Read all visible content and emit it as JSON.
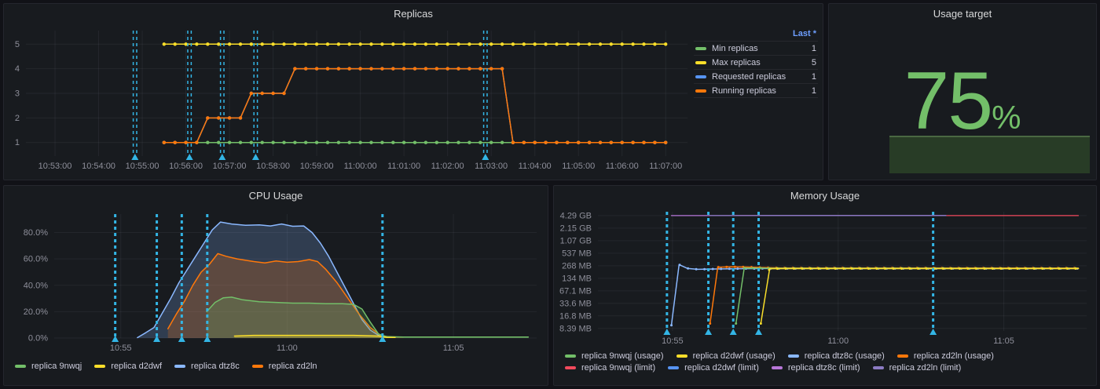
{
  "theme": {
    "background": "#111217",
    "panel_background": "#181b1f",
    "grid_line": "rgba(204,204,220,0.07)",
    "axis_text": "rgba(204,204,220,0.65)",
    "text": "#ccccdc",
    "link_blue": "#6E9FFF",
    "annotation_cyan": "#33B5E5",
    "accent_green": "#73BF69"
  },
  "chart_data": [
    {
      "id": "replicas",
      "type": "line",
      "title": "Replicas",
      "x_domain": [
        "10:52:20",
        "11:07:30"
      ],
      "x_ticks": [
        "10:53:00",
        "10:54:00",
        "10:55:00",
        "10:56:00",
        "10:57:00",
        "10:58:00",
        "10:59:00",
        "11:00:00",
        "11:01:00",
        "11:02:00",
        "11:03:00",
        "11:04:00",
        "11:05:00",
        "11:06:00",
        "11:07:00"
      ],
      "y_scale": "linear",
      "y_domain": [
        0.45,
        5.55
      ],
      "y_ticks": [
        {
          "label": "1",
          "v": 1
        },
        {
          "label": "2",
          "v": 2
        },
        {
          "label": "3",
          "v": 3
        },
        {
          "label": "4",
          "v": 4
        },
        {
          "label": "5",
          "v": 5
        }
      ],
      "marker_interval_s": 15,
      "annotations": [
        "10:54:50",
        "10:56:05",
        "10:56:50",
        "10:57:36",
        "11:02:52"
      ],
      "series": [
        {
          "name": "Min replicas",
          "color": "#73BF69",
          "width": 1.5,
          "markers": true,
          "points": [
            [
              "10:55:30",
              1
            ],
            [
              "11:07:00",
              1
            ]
          ]
        },
        {
          "name": "Max replicas",
          "color": "#FADE2A",
          "width": 1.5,
          "markers": true,
          "points": [
            [
              "10:55:30",
              5
            ],
            [
              "11:07:00",
              5
            ]
          ]
        },
        {
          "name": "Requested replicas",
          "color": "#5794F2",
          "width": 1.5,
          "markers": true,
          "points": [
            [
              "10:55:30",
              1
            ],
            [
              "10:56:15",
              1
            ],
            [
              "10:56:30",
              2
            ],
            [
              "10:57:15",
              2
            ],
            [
              "10:57:30",
              3
            ],
            [
              "10:58:15",
              3
            ],
            [
              "10:58:30",
              4
            ],
            [
              "11:03:15",
              4
            ],
            [
              "11:03:30",
              1
            ],
            [
              "11:07:00",
              1
            ]
          ]
        },
        {
          "name": "Running replicas",
          "color": "#FF780A",
          "width": 1.5,
          "markers": true,
          "points": [
            [
              "10:55:30",
              1
            ],
            [
              "10:56:15",
              1
            ],
            [
              "10:56:30",
              2
            ],
            [
              "10:57:15",
              2
            ],
            [
              "10:57:30",
              3
            ],
            [
              "10:58:15",
              3
            ],
            [
              "10:58:30",
              4
            ],
            [
              "11:03:15",
              4
            ],
            [
              "11:03:30",
              1
            ],
            [
              "11:07:00",
              1
            ]
          ]
        }
      ],
      "legend": {
        "header": "Last *",
        "rows": [
          {
            "label": "Min replicas",
            "color": "#73BF69",
            "value": "1"
          },
          {
            "label": "Max replicas",
            "color": "#FADE2A",
            "value": "5"
          },
          {
            "label": "Requested replicas",
            "color": "#5794F2",
            "value": "1"
          },
          {
            "label": "Running replicas",
            "color": "#FF780A",
            "value": "1"
          }
        ]
      }
    },
    {
      "id": "usage-target",
      "type": "gauge",
      "title": "Usage target",
      "display": "75",
      "unit": "%",
      "value": 75,
      "color": "#73BF69",
      "bar": {
        "percent": 75,
        "fill": "#283c26",
        "edge": "#4a6842"
      }
    },
    {
      "id": "cpu",
      "type": "area",
      "title": "CPU Usage",
      "x_domain": [
        "10:53:00",
        "11:07:30"
      ],
      "x_ticks": [
        {
          "label": "10:55",
          "t": "10:55:00"
        },
        {
          "label": "11:00",
          "t": "11:00:00"
        },
        {
          "label": "11:05",
          "t": "11:05:00"
        }
      ],
      "y_scale": "linear",
      "y_domain": [
        0,
        94
      ],
      "y_ticks": [
        {
          "label": "0.0%",
          "v": 0
        },
        {
          "label": "20.0%",
          "v": 20
        },
        {
          "label": "40.0%",
          "v": 40
        },
        {
          "label": "60.0%",
          "v": 60
        },
        {
          "label": "80.0%",
          "v": 80
        }
      ],
      "annotations": [
        "10:54:50",
        "10:56:05",
        "10:56:50",
        "10:57:36",
        "11:02:52"
      ],
      "series": [
        {
          "name": "replica dtz8c",
          "color": "#8AB8FF",
          "width": 1.5,
          "fill": 0.22,
          "points": [
            [
              "10:55:30",
              0.3
            ],
            [
              "10:55:45",
              4
            ],
            [
              "10:56:00",
              8
            ],
            [
              "10:56:15",
              19
            ],
            [
              "10:56:30",
              30
            ],
            [
              "10:56:45",
              42
            ],
            [
              "10:57:00",
              52
            ],
            [
              "10:57:15",
              62
            ],
            [
              "10:57:30",
              72
            ],
            [
              "10:57:45",
              82
            ],
            [
              "10:58:00",
              88
            ],
            [
              "10:58:20",
              86.5
            ],
            [
              "10:58:45",
              85.5
            ],
            [
              "10:59:10",
              85.8
            ],
            [
              "10:59:30",
              85
            ],
            [
              "10:59:50",
              86.5
            ],
            [
              "11:00:10",
              84.8
            ],
            [
              "11:00:30",
              85
            ],
            [
              "11:00:45",
              80
            ],
            [
              "11:01:00",
              72
            ],
            [
              "11:01:15",
              62
            ],
            [
              "11:01:30",
              50
            ],
            [
              "11:01:45",
              38
            ],
            [
              "11:02:00",
              26
            ],
            [
              "11:02:15",
              14
            ],
            [
              "11:02:30",
              6
            ],
            [
              "11:02:45",
              2
            ],
            [
              "11:03:00",
              0.5
            ]
          ]
        },
        {
          "name": "replica zd2ln",
          "color": "#FF780A",
          "width": 1.5,
          "fill": 0.22,
          "points": [
            [
              "10:56:25",
              7
            ],
            [
              "10:56:40",
              18
            ],
            [
              "10:56:55",
              28
            ],
            [
              "10:57:10",
              40
            ],
            [
              "10:57:25",
              50
            ],
            [
              "10:57:40",
              56
            ],
            [
              "10:57:55",
              64
            ],
            [
              "10:58:10",
              62
            ],
            [
              "10:58:30",
              60
            ],
            [
              "10:59:00",
              58
            ],
            [
              "10:59:20",
              57
            ],
            [
              "10:59:40",
              58.5
            ],
            [
              "11:00:00",
              57.5
            ],
            [
              "11:00:20",
              58
            ],
            [
              "11:00:40",
              59.5
            ],
            [
              "11:00:55",
              58
            ],
            [
              "11:01:10",
              52
            ],
            [
              "11:01:30",
              42
            ],
            [
              "11:01:50",
              30
            ],
            [
              "11:02:10",
              18
            ],
            [
              "11:02:30",
              8
            ],
            [
              "11:02:50",
              1.5
            ],
            [
              "11:03:10",
              0.7
            ],
            [
              "11:03:30",
              0.7
            ]
          ]
        },
        {
          "name": "replica 9nwqj",
          "color": "#73BF69",
          "width": 1.5,
          "fill": 0.22,
          "points": [
            [
              "10:57:35",
              20
            ],
            [
              "10:57:50",
              27
            ],
            [
              "10:58:05",
              30.5
            ],
            [
              "10:58:20",
              31
            ],
            [
              "10:58:40",
              29
            ],
            [
              "10:59:10",
              27.5
            ],
            [
              "10:59:40",
              27
            ],
            [
              "11:00:10",
              26.5
            ],
            [
              "11:00:40",
              26.5
            ],
            [
              "11:01:10",
              26
            ],
            [
              "11:01:40",
              26
            ],
            [
              "11:02:00",
              25.5
            ],
            [
              "11:02:15",
              22
            ],
            [
              "11:02:30",
              12
            ],
            [
              "11:02:45",
              3
            ],
            [
              "11:03:00",
              1
            ],
            [
              "11:03:30",
              0.8
            ],
            [
              "11:05:00",
              0.8
            ],
            [
              "11:07:15",
              0.8
            ]
          ]
        },
        {
          "name": "replica d2dwf",
          "color": "#FADE2A",
          "width": 1.5,
          "fill": 0.22,
          "points": [
            [
              "10:58:25",
              1.5
            ],
            [
              "10:59:00",
              2
            ],
            [
              "11:00:00",
              2
            ],
            [
              "11:01:00",
              2
            ],
            [
              "11:02:00",
              2
            ],
            [
              "11:02:45",
              1.5
            ],
            [
              "11:03:00",
              0.5
            ],
            [
              "11:03:15",
              0.4
            ]
          ]
        }
      ],
      "legend_items": [
        {
          "label": "replica 9nwqj",
          "color": "#73BF69"
        },
        {
          "label": "replica d2dwf",
          "color": "#FADE2A"
        },
        {
          "label": "replica dtz8c",
          "color": "#8AB8FF"
        },
        {
          "label": "replica zd2ln",
          "color": "#FF780A"
        }
      ]
    },
    {
      "id": "memory",
      "type": "line",
      "title": "Memory Usage",
      "x_domain": [
        "10:52:45",
        "11:07:30"
      ],
      "x_ticks": [
        {
          "label": "10:55",
          "t": "10:55:00"
        },
        {
          "label": "11:00",
          "t": "11:00:00"
        },
        {
          "label": "11:05",
          "t": "11:05:00"
        }
      ],
      "y_scale": "log2",
      "y_unit": "MB",
      "y_domain": [
        7.3,
        5300
      ],
      "y_ticks": [
        {
          "label": "8.39 MB",
          "v": 8.39
        },
        {
          "label": "16.8 MB",
          "v": 16.8
        },
        {
          "label": "33.6 MB",
          "v": 33.6
        },
        {
          "label": "67.1 MB",
          "v": 67.1
        },
        {
          "label": "134 MB",
          "v": 134
        },
        {
          "label": "268 MB",
          "v": 268
        },
        {
          "label": "537 MB",
          "v": 537
        },
        {
          "label": "1.07 GB",
          "v": 1070
        },
        {
          "label": "2.15 GB",
          "v": 2150
        },
        {
          "label": "4.29 GB",
          "v": 4290
        }
      ],
      "marker_interval_s": 15,
      "annotations": [
        "10:54:50",
        "10:56:05",
        "10:56:50",
        "10:57:36",
        "11:02:52"
      ],
      "series": [
        {
          "name": "replica dtz8c (usage)",
          "color": "#8AB8FF",
          "width": 1.5,
          "markers": true,
          "points": [
            [
              "10:54:58",
              10
            ],
            [
              "10:55:12",
              285
            ],
            [
              "10:55:27",
              232
            ],
            [
              "10:55:45",
              220
            ],
            [
              "10:56:15",
              224
            ],
            [
              "10:57:00",
              228
            ],
            [
              "10:58:00",
              230
            ],
            [
              "11:00:00",
              230
            ],
            [
              "11:07:15",
              230
            ]
          ]
        },
        {
          "name": "replica zd2ln (usage)",
          "color": "#FF780A",
          "width": 1.5,
          "markers": true,
          "points": [
            [
              "10:56:08",
              11
            ],
            [
              "10:56:22",
              248
            ],
            [
              "10:56:45",
              252
            ],
            [
              "10:57:15",
              250
            ],
            [
              "10:57:45",
              243
            ],
            [
              "10:58:15",
              238
            ],
            [
              "11:07:15",
              237
            ]
          ]
        },
        {
          "name": "replica 9nwqj (usage)",
          "color": "#73BF69",
          "width": 1.5,
          "markers": true,
          "points": [
            [
              "10:56:55",
              11
            ],
            [
              "10:57:10",
              236
            ],
            [
              "10:58:00",
              234
            ],
            [
              "11:07:15",
              233
            ]
          ]
        },
        {
          "name": "replica d2dwf (usage)",
          "color": "#FADE2A",
          "width": 1.5,
          "markers": true,
          "points": [
            [
              "10:57:40",
              11
            ],
            [
              "10:57:56",
              228
            ],
            [
              "10:58:30",
              229
            ],
            [
              "11:07:15",
              229
            ]
          ]
        },
        {
          "name": "replica 9nwqj (limit)",
          "color": "#F2495C",
          "width": 1.2,
          "points": [
            [
              "10:56:55",
              4290
            ],
            [
              "11:07:15",
              4290
            ]
          ]
        },
        {
          "name": "replica d2dwf (limit)",
          "color": "#5794F2",
          "width": 1.2,
          "points": [
            [
              "10:57:40",
              4290
            ],
            [
              "11:03:15",
              4290
            ]
          ]
        },
        {
          "name": "replica dtz8c (limit)",
          "color": "#B877D9",
          "width": 1.2,
          "points": [
            [
              "10:54:58",
              4290
            ],
            [
              "11:03:15",
              4290
            ]
          ]
        },
        {
          "name": "replica zd2ln (limit)",
          "color": "#8C7BC4",
          "width": 1.2,
          "points": [
            [
              "10:56:08",
              4290
            ],
            [
              "11:03:15",
              4290
            ]
          ]
        }
      ],
      "legend_items": [
        {
          "label": "replica 9nwqj (usage)",
          "color": "#73BF69"
        },
        {
          "label": "replica d2dwf (usage)",
          "color": "#FADE2A"
        },
        {
          "label": "replica dtz8c (usage)",
          "color": "#8AB8FF"
        },
        {
          "label": "replica zd2ln (usage)",
          "color": "#FF780A"
        },
        {
          "label": "replica 9nwqj (limit)",
          "color": "#F2495C"
        },
        {
          "label": "replica d2dwf (limit)",
          "color": "#5794F2"
        },
        {
          "label": "replica dtz8c (limit)",
          "color": "#B877D9"
        },
        {
          "label": "replica zd2ln (limit)",
          "color": "#8C7BC4"
        }
      ]
    }
  ]
}
